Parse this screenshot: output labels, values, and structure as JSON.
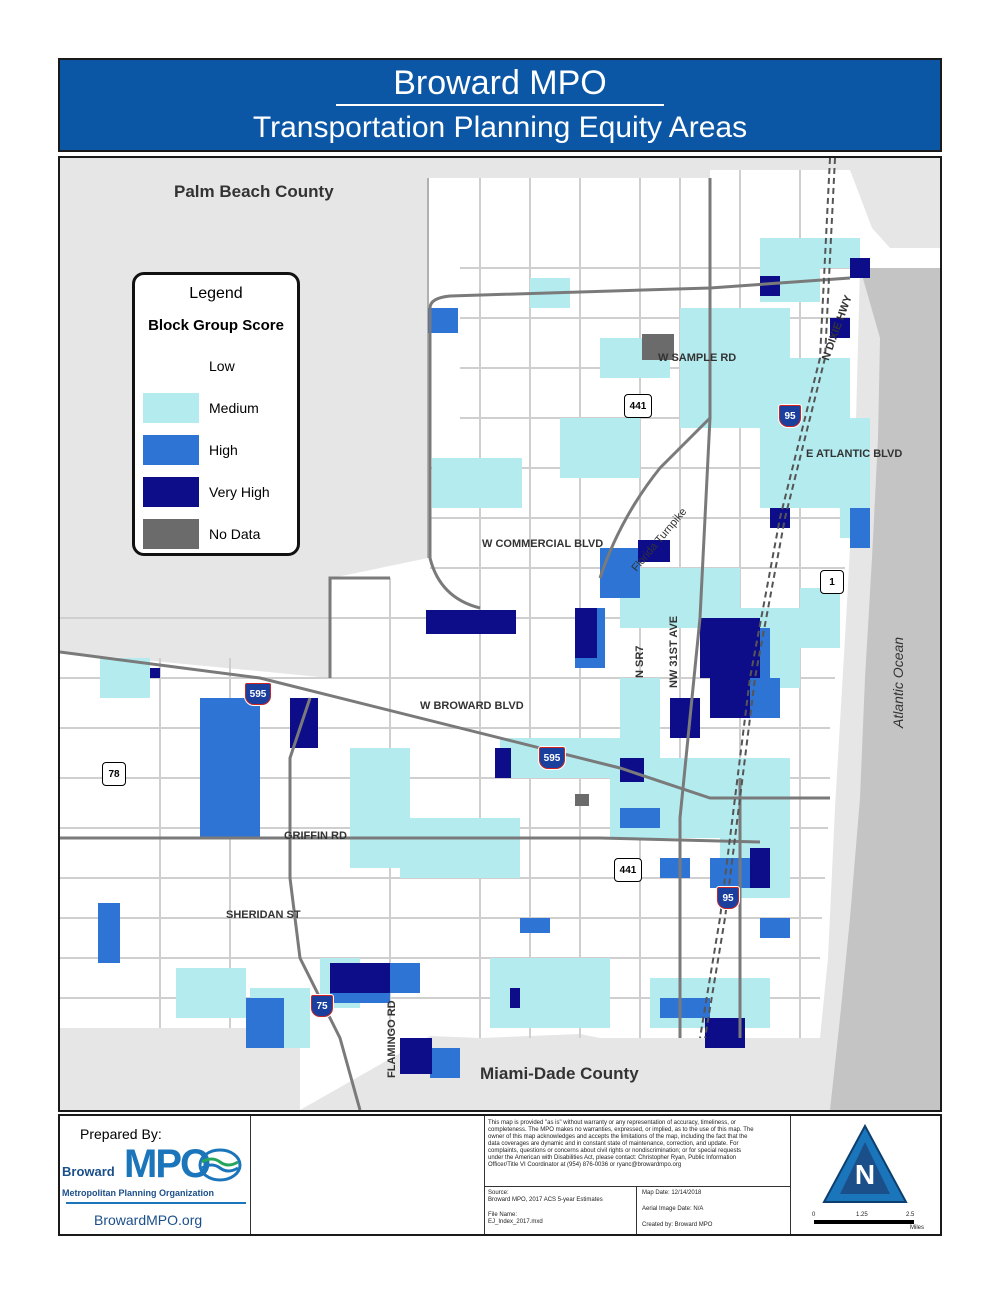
{
  "title": {
    "main": "Broward MPO",
    "subtitle": "Transportation Planning Equity Areas"
  },
  "counties": {
    "north": "Palm Beach County",
    "south": "Miami-Dade County"
  },
  "ocean": "Atlantic Ocean",
  "legend": {
    "title": "Legend",
    "subtitle": "Block Group Score",
    "items": [
      {
        "label": "Low",
        "color": "#ffffff"
      },
      {
        "label": "Medium",
        "color": "#b3ebef"
      },
      {
        "label": "High",
        "color": "#2e74d4"
      },
      {
        "label": "Very High",
        "color": "#0d0d8a"
      },
      {
        "label": "No Data",
        "color": "#6b6b6b"
      }
    ]
  },
  "roads": {
    "w_sample": "W SAMPLE RD",
    "e_atlantic": "E ATLANTIC BLVD",
    "w_commercial": "W COMMERCIAL BLVD",
    "florida_turnpike": "Florida Turnpike",
    "w_broward": "W BROWARD BLVD",
    "griffin": "GRIFFIN RD",
    "sheridan": "SHERIDAN ST",
    "flamingo": "FLAMINGO RD",
    "n_sr7": "N SR7",
    "nw_31st": "NW 31ST AVE",
    "n_dixie": "N DIXIE HWY"
  },
  "shields": {
    "i95_north": "95",
    "i95_south": "95",
    "i595_west": "595",
    "i595_east": "595",
    "i75": "75",
    "us441_north": "441",
    "us441_south": "441",
    "us1": "1",
    "us78": "78"
  },
  "footer": {
    "prepared_by": "Prepared By:",
    "logo_broward": "Broward",
    "logo_mpo": "MPO",
    "logo_org": "Metropolitan Planning Organization",
    "website": "BrowardMPO.org",
    "disclaimer": "This map is provided \"as is\" without warranty or any representation of accuracy, timeliness, or completeness. The MPO makes no warranties, expressed, or implied, as to the use of this map. The owner of this map acknowledges and accepts the limitations of the map, including the fact that the data coverages are dynamic and in constant state of maintenance, correction, and update. For complaints, questions or concerns about civil rights or nondiscrimination; or for special requests under the American with Disabilities Act, please contact: Christopher Ryan, Public Information Officer/Title VI Coordinator at (954) 876-0036 or ryanc@browardmpo.org",
    "source_label": "Source:",
    "source_value": "Broward MPO, 2017 ACS 5-year Estimates",
    "file_label": "File Name:",
    "file_value": "EJ_Index_2017.mxd",
    "map_date": "Map Date:  12/14/2018",
    "aerial_date": "Aerial Image Date: N/A",
    "created_by": "Created by:  Broward MPO",
    "north_letter": "N",
    "scale_0": "0",
    "scale_1": "1.25",
    "scale_2": "2.5",
    "scale_unit": "Miles"
  }
}
